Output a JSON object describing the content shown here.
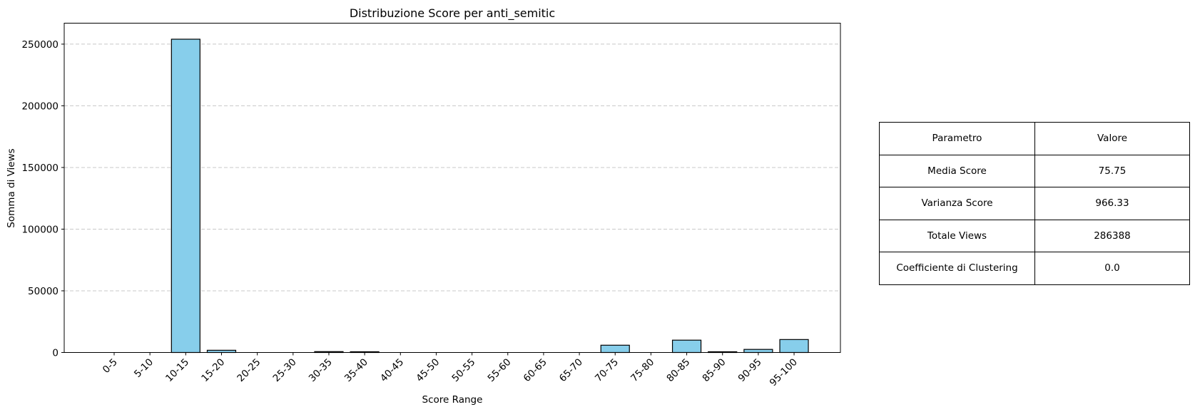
{
  "chart_data": {
    "type": "bar",
    "title": "Distribuzione Score per anti_semitic",
    "xlabel": "Score Range",
    "ylabel": "Somma di Views",
    "categories": [
      "0-5",
      "5-10",
      "10-15",
      "15-20",
      "20-25",
      "25-30",
      "30-35",
      "35-40",
      "40-45",
      "45-50",
      "50-55",
      "55-60",
      "60-65",
      "65-70",
      "70-75",
      "75-80",
      "80-85",
      "85-90",
      "90-95",
      "95-100"
    ],
    "values": [
      0,
      0,
      254000,
      1800,
      0,
      0,
      700,
      600,
      0,
      0,
      0,
      0,
      0,
      0,
      5900,
      0,
      10000,
      600,
      2500,
      10500
    ],
    "ylim": [
      0,
      267000
    ],
    "yticks": [
      0,
      50000,
      100000,
      150000,
      200000,
      250000
    ],
    "ytick_labels": [
      "0",
      "50000",
      "100000",
      "150000",
      "200000",
      "250000"
    ],
    "grid": "y",
    "bar_color": "#87ceeb",
    "edge_color": "#000000",
    "grid_color": "#c8c8c8"
  },
  "stats_table": {
    "header": [
      "Parametro",
      "Valore"
    ],
    "rows": [
      {
        "param": "Media Score",
        "value": "75.75"
      },
      {
        "param": "Varianza Score",
        "value": "966.33"
      },
      {
        "param": "Totale Views",
        "value": "286388"
      },
      {
        "param": "Coefficiente di Clustering",
        "value": "0.0"
      }
    ]
  }
}
